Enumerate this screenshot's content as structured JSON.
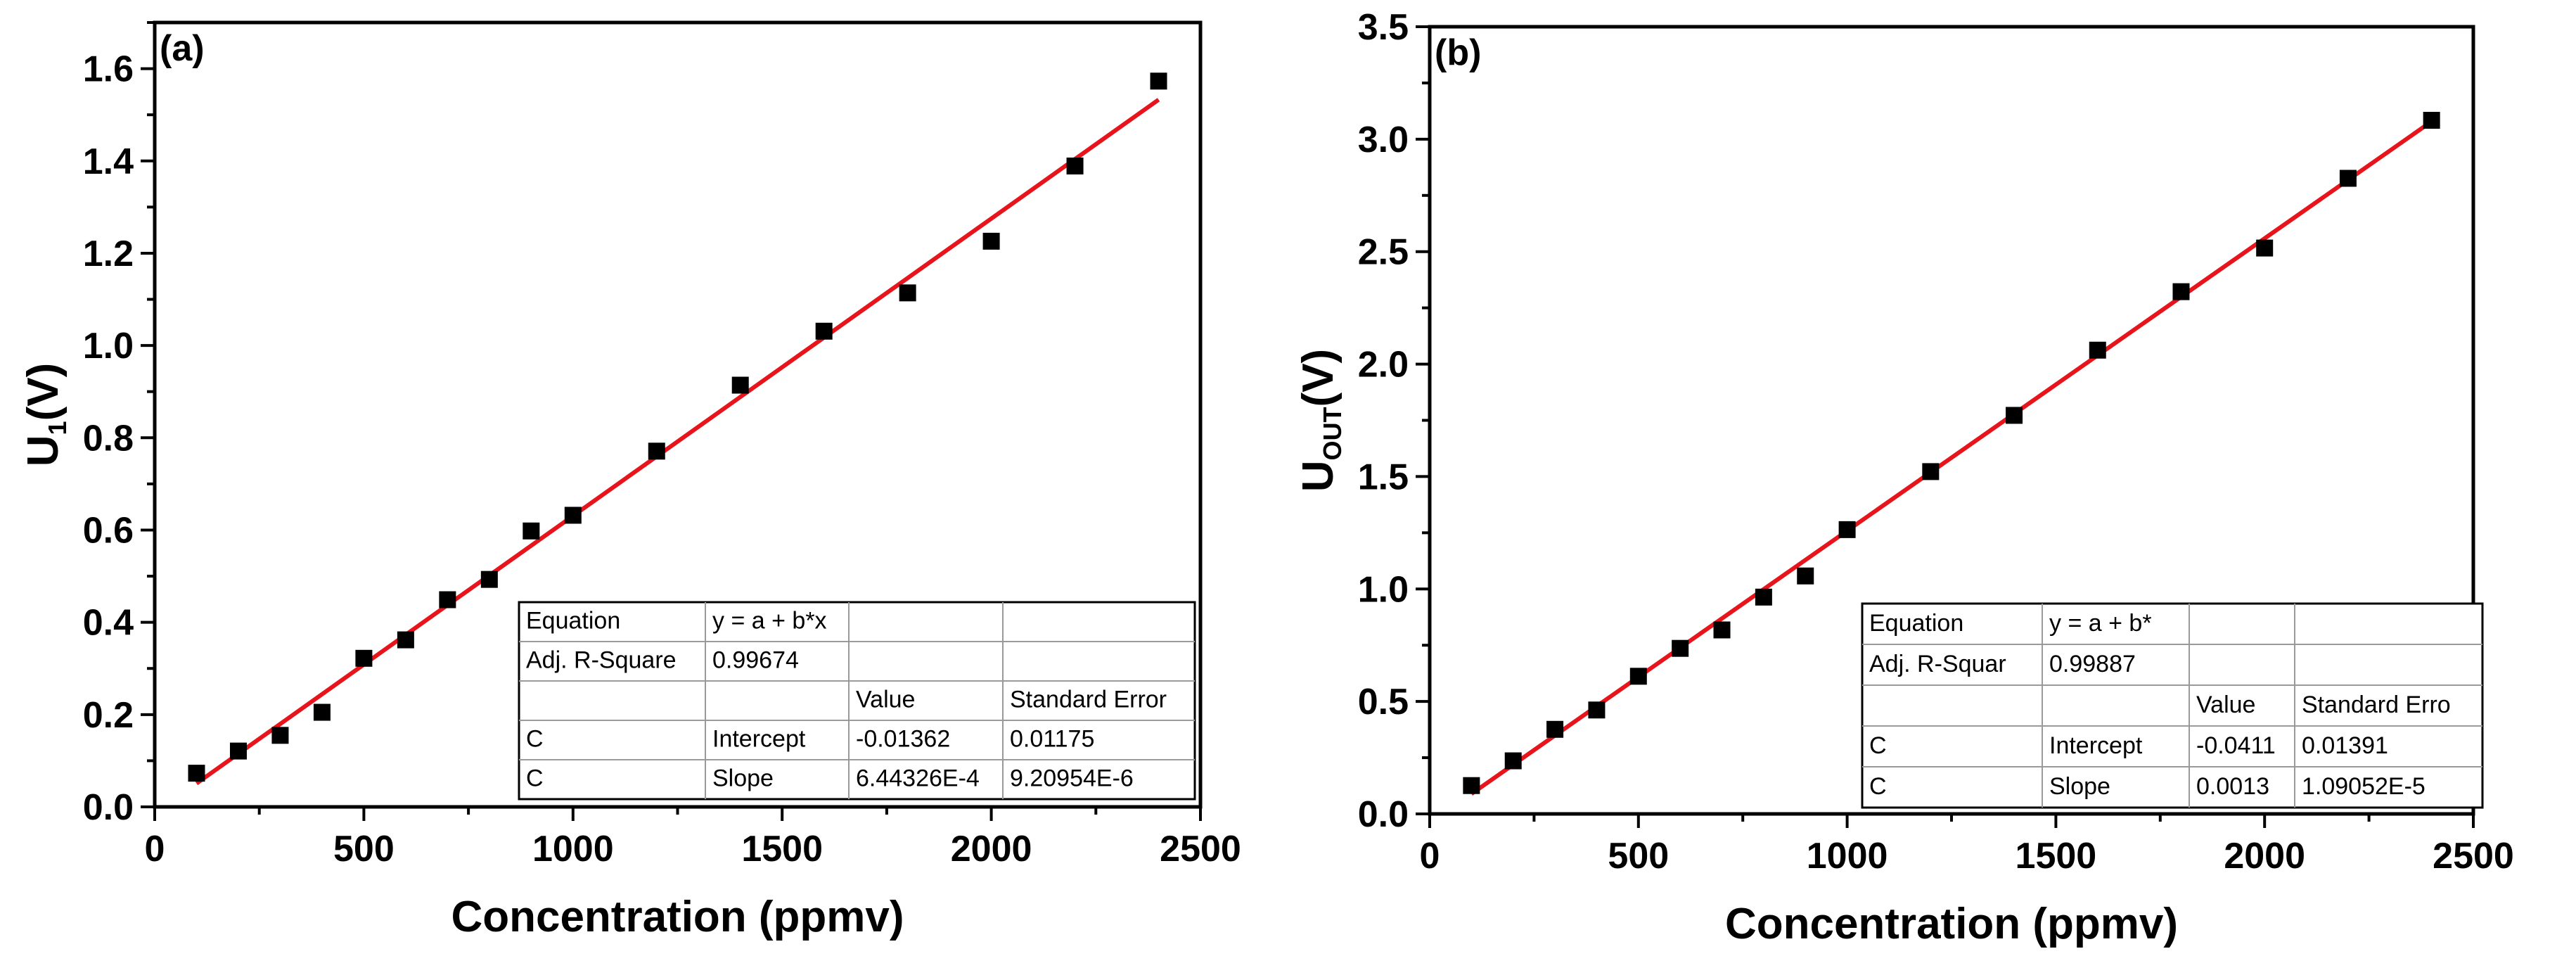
{
  "chart_data": [
    {
      "type": "scatter",
      "panel": "(a)",
      "xlabel": "Concentration (ppmv)",
      "ylabel_main": "U",
      "ylabel_sub": "1",
      "ylabel_tail": "(V)",
      "xlim": [
        0,
        2500
      ],
      "ylim": [
        0,
        1.7
      ],
      "xticks": [
        0,
        500,
        1000,
        1500,
        2000,
        2500
      ],
      "yticks": [
        0.0,
        0.2,
        0.4,
        0.6,
        0.8,
        1.0,
        1.2,
        1.4,
        1.6
      ],
      "ytick_labels": [
        "0.0",
        "0.2",
        "0.4",
        "0.6",
        "0.8",
        "1.0",
        "1.2",
        "1.4",
        "1.6"
      ],
      "series": [
        {
          "name": "data",
          "marker": "square",
          "color": "#000000",
          "x": [
            100,
            200,
            300,
            400,
            500,
            600,
            700,
            800,
            900,
            1000,
            1200,
            1400,
            1600,
            1800,
            2000,
            2200,
            2400
          ],
          "y": [
            0.073,
            0.121,
            0.155,
            0.205,
            0.322,
            0.362,
            0.449,
            0.493,
            0.598,
            0.632,
            0.771,
            0.914,
            1.031,
            1.114,
            1.226,
            1.389,
            1.573
          ]
        }
      ],
      "fit": {
        "color": "#e8141c",
        "x": [
          100,
          2400
        ],
        "intercept": -0.01362,
        "slope": 0.000644326
      },
      "fit_table": {
        "rows": [
          [
            "Equation",
            "y = a + b*x",
            "",
            ""
          ],
          [
            "Adj. R-Square",
            "0.99674",
            "",
            ""
          ],
          [
            "",
            "",
            "Value",
            "Standard Error"
          ],
          [
            "C",
            "Intercept",
            "-0.01362",
            "0.01175"
          ],
          [
            "C",
            "Slope",
            "6.44326E-4",
            "9.20954E-6"
          ]
        ]
      }
    },
    {
      "type": "scatter",
      "panel": "(b)",
      "xlabel": "Concentration (ppmv)",
      "ylabel_main": "U",
      "ylabel_sub": "OUT",
      "ylabel_tail": "(V)",
      "xlim": [
        0,
        2500
      ],
      "ylim": [
        0,
        3.5
      ],
      "xticks": [
        0,
        500,
        1000,
        1500,
        2000,
        2500
      ],
      "yticks": [
        0.0,
        0.5,
        1.0,
        1.5,
        2.0,
        2.5,
        3.0,
        3.5
      ],
      "ytick_labels": [
        "0.0",
        "0.5",
        "1.0",
        "1.5",
        "2.0",
        "2.5",
        "3.0",
        "3.5"
      ],
      "series": [
        {
          "name": "data",
          "marker": "square",
          "color": "#000000",
          "x": [
            100,
            200,
            300,
            400,
            500,
            600,
            700,
            800,
            900,
            1000,
            1200,
            1400,
            1600,
            1800,
            2000,
            2200,
            2400
          ],
          "y": [
            0.126,
            0.236,
            0.376,
            0.462,
            0.612,
            0.736,
            0.818,
            0.964,
            1.058,
            1.264,
            1.522,
            1.772,
            2.062,
            2.322,
            2.516,
            2.826,
            3.084
          ]
        }
      ],
      "fit": {
        "color": "#e8141c",
        "x": [
          100,
          2400
        ],
        "intercept": -0.0411,
        "slope": 0.0013
      },
      "fit_table": {
        "rows": [
          [
            "Equation",
            "y = a + b*",
            "",
            ""
          ],
          [
            "Adj. R-Squar",
            "0.99887",
            "",
            ""
          ],
          [
            "",
            "",
            "Value",
            "Standard Erro"
          ],
          [
            "C",
            "Intercept",
            "-0.0411",
            "0.01391"
          ],
          [
            "C",
            "Slope",
            "0.0013",
            "1.09052E-5"
          ]
        ]
      }
    }
  ]
}
